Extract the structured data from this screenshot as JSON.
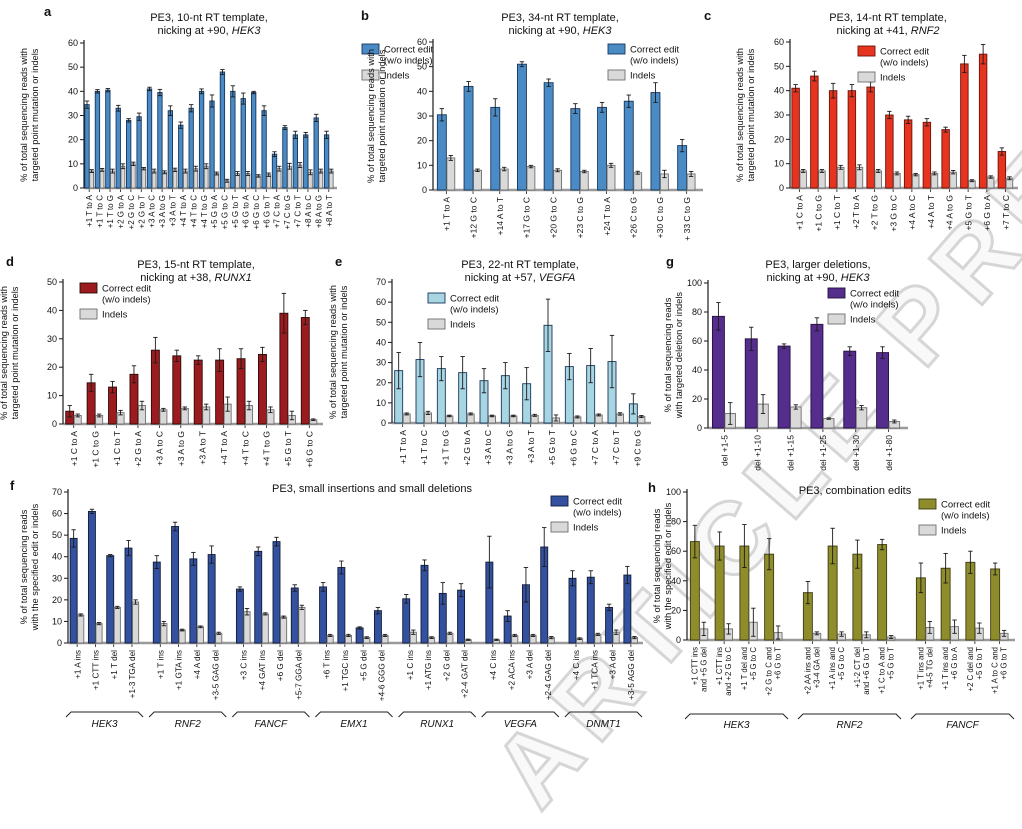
{
  "watermark": "ARTICLE PREVIEW",
  "legend": {
    "edit_line1": "Correct edit",
    "edit_line2": "(w/o indels)",
    "indels_label": "Indels"
  },
  "colors": {
    "indel_fill": "#d9d9d9",
    "indel_stroke": "#6e6e6e",
    "error": "#1a1a1a",
    "axis": "#1a1a1a",
    "baseline": "#9a9a9a"
  },
  "chart_data": [
    {
      "id": "a",
      "letter": "a",
      "type": "bar",
      "title_line1": "PE3, 10-nt RT template,",
      "title_line2_prefix": "nicking at +90, ",
      "title_gene": "HEK3",
      "ylabel_line1": "% of total sequencing reads with",
      "ylabel_line2": "targeted point mutation or indels",
      "ylim": [
        0,
        60
      ],
      "ystep": 10,
      "bar_color": "#4a8bc6",
      "bar_stroke": "#17375e",
      "categories": [
        "+1 T to A",
        "+1 T to C",
        "+1 T to G",
        "+2 G to A",
        "+2 G to C",
        "+2 G to T",
        "+3 A to C",
        "+3 A to G",
        "+3 A to T",
        "+4 T to A",
        "+4 T to C",
        "+4 T to G",
        "+5 G to A",
        "+5 G to C",
        "+5 G to T",
        "+6 G to A",
        "+6 G to C",
        "+6 G to T",
        "+7 C to A",
        "+7 C to G",
        "+7 C to T",
        "+8 A to C",
        "+8 A to G",
        "+8 A to T"
      ],
      "series": [
        {
          "name": "Correct edit (w/o indels)",
          "values": [
            34.5,
            40,
            40.5,
            33,
            28,
            29.5,
            41,
            39.5,
            32,
            26,
            33,
            40,
            36,
            48,
            40,
            37,
            39.5,
            32,
            14,
            25,
            22,
            22,
            29,
            22
          ],
          "errors": [
            1.5,
            0.7,
            0.7,
            1.2,
            0.7,
            1.5,
            0.7,
            1.3,
            2,
            1.3,
            1.5,
            1,
            2.5,
            1,
            2.3,
            2.3,
            0.5,
            2,
            1,
            0.8,
            1.5,
            1,
            1.5,
            1.5
          ]
        },
        {
          "name": "Indels",
          "values": [
            7,
            7.5,
            7,
            9,
            10,
            8,
            7,
            6.5,
            7.5,
            7,
            8,
            9,
            6,
            3,
            6,
            6,
            5,
            5.5,
            8,
            9,
            9.5,
            6.5,
            7,
            7
          ],
          "errors": [
            0.6,
            0.6,
            0.8,
            1,
            0.7,
            0.5,
            0.8,
            0.6,
            0.7,
            0.8,
            1,
            1,
            0.6,
            0.6,
            0.8,
            0.8,
            0.5,
            0.7,
            1,
            1.2,
            1,
            1,
            0.8,
            0.8
          ]
        }
      ]
    },
    {
      "id": "b",
      "letter": "b",
      "type": "bar",
      "title_line1": "PE3, 34-nt RT template,",
      "title_line2_prefix": "nicking at +90, ",
      "title_gene": "HEK3",
      "ylabel_line1": "% of total sequencing reads with",
      "ylabel_line2": "targeted point mutation or indels",
      "ylim": [
        0,
        60
      ],
      "ystep": 10,
      "bar_color": "#4a8bc6",
      "bar_stroke": "#17375e",
      "categories": [
        "+1 T to A",
        "+12 G to C",
        "+14 A to T",
        "+17 G to C",
        "+20 G to C",
        "+23 C to G",
        "+24 T to A",
        "+26 C to G",
        "+30 C to G",
        "+ 33 C to G"
      ],
      "series": [
        {
          "name": "Correct edit (w/o indels)",
          "values": [
            30.5,
            42,
            33.5,
            51,
            43.5,
            33,
            33.5,
            36,
            39.5,
            18
          ],
          "errors": [
            2.5,
            2,
            3.5,
            1,
            1.5,
            2,
            2,
            2.5,
            4,
            2.5
          ]
        },
        {
          "name": "Indels",
          "values": [
            13,
            8,
            8.5,
            9.5,
            8,
            7.5,
            10,
            7,
            6.5,
            6.5
          ],
          "errors": [
            1,
            0.5,
            0.7,
            0.5,
            0.6,
            0.5,
            0.8,
            0.6,
            1.5,
            1
          ]
        }
      ]
    },
    {
      "id": "c",
      "letter": "c",
      "type": "bar",
      "title_line1": "PE3, 14-nt RT template,",
      "title_line2_prefix": "nicking at +41, ",
      "title_gene": "RNF2",
      "ylabel_line1": "% of total sequencing reads with",
      "ylabel_line2": "targeted point mutation or indels",
      "ylim": [
        0,
        60
      ],
      "ystep": 10,
      "bar_color": "#e6341f",
      "bar_stroke": "#6e120a",
      "categories": [
        "+1 C to A",
        "+1 C to G",
        "+1 C to T",
        "+2 T to A",
        "+2 T to G",
        "+3 G to C",
        "+4 A to C",
        "+4 A to T",
        "+4 A to G",
        "+5 G to T",
        "+6 G to A",
        "+7 T to C"
      ],
      "series": [
        {
          "name": "Correct edit (w/o indels)",
          "values": [
            41,
            46,
            40,
            40,
            41.5,
            30,
            28,
            27,
            24,
            51,
            55,
            15
          ],
          "errors": [
            1.5,
            2,
            3,
            2.5,
            2,
            1.5,
            1.5,
            1.5,
            1,
            3.5,
            4,
            1.5
          ]
        },
        {
          "name": "Indels",
          "values": [
            7,
            7,
            8.5,
            8.5,
            7,
            6,
            5.5,
            6,
            6.5,
            3,
            4.5,
            4
          ],
          "errors": [
            0.6,
            0.6,
            0.8,
            1,
            0.6,
            0.6,
            0.5,
            0.6,
            0.7,
            0.4,
            0.5,
            0.6
          ]
        }
      ]
    },
    {
      "id": "d",
      "letter": "d",
      "type": "bar",
      "title_line1": "PE3, 15-nt RT template,",
      "title_line2_prefix": "nicking at +38, ",
      "title_gene": "RUNX1",
      "ylabel_line1": "% of total sequencing reads with",
      "ylabel_line2": "targeted point mutation or indels",
      "ylim": [
        0,
        50
      ],
      "ystep": 10,
      "bar_color": "#9c1b1e",
      "bar_stroke": "#2d0a0a",
      "categories": [
        "+1 C to A",
        "+1 C to G",
        "+1 C to T",
        "+2 G to A",
        "+3 A to C",
        "+3 A to G",
        "+3 A to T",
        "+4 T to A",
        "+4 T to C",
        "+4 T to G",
        "+5 G to T",
        "+6 G to C"
      ],
      "series": [
        {
          "name": "Correct edit (w/o indels)",
          "values": [
            4.5,
            14.5,
            13,
            17.5,
            26,
            24,
            22.5,
            22.5,
            23,
            24.5,
            39,
            37.5
          ],
          "errors": [
            2,
            3,
            2,
            3,
            4.5,
            2,
            1.5,
            4,
            3.5,
            2.5,
            7,
            2.5
          ]
        },
        {
          "name": "Indels",
          "values": [
            3,
            3,
            4,
            6.5,
            5,
            5.5,
            6,
            7,
            6.5,
            5,
            3,
            1.5
          ],
          "errors": [
            0.5,
            0.5,
            0.8,
            1.5,
            0.5,
            0.5,
            1,
            2.5,
            1.5,
            1,
            1.5,
            0.3
          ]
        }
      ]
    },
    {
      "id": "e",
      "letter": "e",
      "type": "bar",
      "title_line1": "PE3, 22-nt RT template,",
      "title_line2_prefix": "nicking at +57, ",
      "title_gene": "VEGFA",
      "ylabel_line1": "% of total sequencing reads with",
      "ylabel_line2": "targeted point mutation or indels",
      "ylim": [
        0,
        70
      ],
      "ystep": 10,
      "bar_color": "#a8d5e2",
      "bar_stroke": "#16365c",
      "categories": [
        "+1 T to A",
        "+1 T to C",
        "+1 T to G",
        "+2 G to A",
        "+3 A to C",
        "+3 A to G",
        "+3 A to T",
        "+5 G to T",
        "+6 G to C",
        "+7 C to A",
        "+7 C to T",
        "+9 C to G"
      ],
      "series": [
        {
          "name": "Correct edit (w/o indels)",
          "values": [
            26,
            31.5,
            27,
            25,
            21,
            23.5,
            19.5,
            48.5,
            28,
            28.5,
            30.5,
            9.5
          ],
          "errors": [
            9,
            8.5,
            6,
            8,
            6,
            6.5,
            8,
            13,
            6.5,
            8.5,
            13,
            5
          ]
        },
        {
          "name": "Indels",
          "values": [
            4.5,
            5,
            3.5,
            4.5,
            3.5,
            3.5,
            3.8,
            2.5,
            3,
            4,
            4.5,
            3.2
          ],
          "errors": [
            0.5,
            0.8,
            0.4,
            0.5,
            0.4,
            0.4,
            0.5,
            1.5,
            0.5,
            0.5,
            0.6,
            0.5
          ]
        }
      ]
    },
    {
      "id": "g",
      "letter": "g",
      "type": "bar",
      "title_line1": "PE3, larger deletions,",
      "title_line2_prefix": "nicking at +90, ",
      "title_gene": "HEK3",
      "ylabel_line1": "% of total sequencing reads",
      "ylabel_line2": "with targeted deletion or indels",
      "ylim": [
        0,
        100
      ],
      "ystep": 20,
      "bar_color": "#552d8c",
      "bar_stroke": "#241040",
      "categories": [
        "del +1-5",
        "del +1-10",
        "del +1-15",
        "del +1-25",
        "del +1-30",
        "del +1-80"
      ],
      "series": [
        {
          "name": "Correct edit (w/o indels)",
          "values": [
            77,
            61.5,
            56.5,
            71.5,
            53,
            52
          ],
          "errors": [
            9.5,
            8,
            1.5,
            4.5,
            3,
            4
          ]
        },
        {
          "name": "Indels",
          "values": [
            10,
            16.5,
            14.5,
            6.5,
            14,
            4.5
          ],
          "errors": [
            7.5,
            6.5,
            1.5,
            0.5,
            1.5,
            1
          ]
        }
      ]
    },
    {
      "id": "f",
      "letter": "f",
      "type": "bar",
      "title_line1": "PE3, small insertions and small deletions",
      "title_line2_prefix": "",
      "title_gene": "",
      "ylabel_line1": "% of total sequencing reads",
      "ylabel_line2": "with the specified edit or indels",
      "ylim": [
        0,
        70
      ],
      "ystep": 10,
      "bar_color": "#33519e",
      "bar_stroke": "#101c3d",
      "categories": [
        "+1 A ins",
        "+1 CTT ins",
        "+1 T del",
        "+1-3 TGA del",
        "+1 T ins",
        "+1 GTA ins",
        "+4 A del",
        "+3-5 GAG del",
        "+3 C ins",
        "+4 GAT ins",
        "+6 G del",
        "+5-7 GGA del",
        "+6 T ins",
        "+1 TGC ins",
        "+5 G del",
        "+4-6 GGG del",
        "+1 C ins",
        "+1 ATG ins",
        "+2 G del",
        "+2-4 GAT del",
        "+4 C ins",
        "+2 ACA ins",
        "+3 A del",
        "+2-4 GAG del",
        "+4 C ins",
        "+1 TCA ins",
        "+3 A del",
        "+3-5 AGG del"
      ],
      "groups": [
        {
          "label": "HEK3",
          "count": 4
        },
        {
          "label": "RNF2",
          "count": 4
        },
        {
          "label": "FANCF",
          "count": 4
        },
        {
          "label": "EMX1",
          "count": 4
        },
        {
          "label": "RUNX1",
          "count": 4
        },
        {
          "label": "VEGFA",
          "count": 4
        },
        {
          "label": "DNMT1",
          "count": 4
        }
      ],
      "series": [
        {
          "name": "Correct edit (w/o indels)",
          "values": [
            48.5,
            61,
            40.5,
            44,
            37.5,
            54,
            39,
            41,
            25,
            42.5,
            47,
            25.5,
            26,
            35,
            7,
            15,
            20.5,
            36,
            23,
            24.5,
            37.5,
            12.5,
            27,
            44.5,
            30,
            30.5,
            16.5,
            31.5
          ],
          "errors": [
            4,
            1,
            0.5,
            3.5,
            3,
            2,
            3,
            4,
            1,
            2,
            2,
            1.5,
            2,
            3,
            0.5,
            1.5,
            2,
            2.5,
            5,
            3,
            12,
            2.5,
            8,
            9,
            3.5,
            3,
            1.5,
            4
          ]
        },
        {
          "name": "Indels",
          "values": [
            13,
            9,
            16.5,
            19,
            9,
            6,
            7.5,
            4.5,
            14.5,
            13.5,
            12,
            16.5,
            3.5,
            3.5,
            2.5,
            3.5,
            5,
            2.5,
            4.5,
            1.5,
            1.5,
            3.5,
            3.5,
            2.5,
            2,
            4,
            5,
            2.5
          ],
          "errors": [
            0.5,
            0.5,
            0.5,
            1,
            1,
            0.4,
            0.4,
            0.5,
            1.5,
            0.5,
            0.5,
            1,
            0.5,
            0.5,
            0.4,
            0.5,
            1,
            0.4,
            0.5,
            0.3,
            0.3,
            0.5,
            0.5,
            0.5,
            0.4,
            0.5,
            1,
            0.5
          ]
        }
      ]
    },
    {
      "id": "h",
      "letter": "h",
      "type": "bar",
      "title_line1": "PE3, combination edits",
      "title_line2_prefix": "",
      "title_gene": "",
      "ylabel_line1": "% of total sequencing reads",
      "ylabel_line2": "with the specified edit or indels",
      "ylim": [
        0,
        100
      ],
      "ystep": 20,
      "bar_color": "#8e8c2b",
      "bar_stroke": "#3c3c12",
      "categories": [
        [
          "+1 CTT ins",
          "and +5 G del"
        ],
        [
          "+1 CTT ins",
          "and +2 G to C"
        ],
        [
          "+1 T del and",
          "+5 G to C"
        ],
        [
          "+2 G to C and",
          "+6 G to T"
        ],
        [
          "+2 AA ins and",
          "+3-4 GA del"
        ],
        [
          "+1 A ins and",
          "+5 G to C"
        ],
        [
          "+1-2 CT del",
          "and +6 G to T"
        ],
        [
          "+1 C to A and",
          "+5 G to T"
        ],
        [
          "+1 T ins and",
          "+4-5 TG del"
        ],
        [
          "+1 T ins and",
          "+6 G to A"
        ],
        [
          "+2 C del and",
          "+5 G to T"
        ],
        [
          "+1 A to C and",
          "+6 G to T"
        ]
      ],
      "groups": [
        {
          "label": "HEK3",
          "count": 4
        },
        {
          "label": "RNF2",
          "count": 4
        },
        {
          "label": "FANCF",
          "count": 4
        }
      ],
      "series": [
        {
          "name": "Correct edit (w/o indels)",
          "values": [
            66.5,
            63.5,
            63.5,
            58,
            32,
            63.5,
            58,
            64.5,
            42,
            48.5,
            52.5,
            48
          ],
          "errors": [
            11,
            9.5,
            14.5,
            10.5,
            7.5,
            12,
            9.5,
            3.5,
            10,
            10,
            7.5,
            4
          ]
        },
        {
          "name": "Indels",
          "values": [
            7.5,
            7.5,
            12,
            5,
            4.5,
            4,
            3.5,
            2,
            8.5,
            9,
            8,
            4.5
          ],
          "errors": [
            4.5,
            3.5,
            9.5,
            4.5,
            1,
            1.5,
            2,
            1,
            4,
            4.5,
            3.5,
            2
          ]
        }
      ]
    }
  ]
}
